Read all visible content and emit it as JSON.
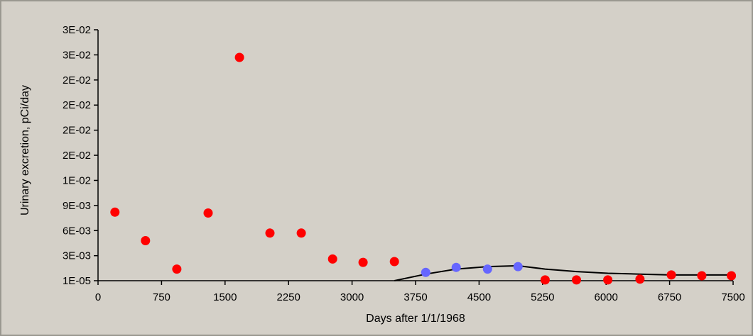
{
  "chart_data": {
    "type": "scatter",
    "xlabel": "Days after 1/1/1968",
    "ylabel": "Urinary excretion, pCi/day",
    "xlim": [
      0,
      7500
    ],
    "ylim": [
      1e-05,
      0.03
    ],
    "x_ticks": [
      0,
      750,
      1500,
      2250,
      3000,
      3750,
      4500,
      5250,
      6000,
      6750,
      7500
    ],
    "y_ticks": [
      1e-05,
      0.003,
      0.006,
      0.009,
      0.012,
      0.015,
      0.018,
      0.021,
      0.024,
      0.027,
      0.03
    ],
    "x_tick_labels": [
      "0",
      "750",
      "1500",
      "2250",
      "3000",
      "3750",
      "4500",
      "5250",
      "6000",
      "6750",
      "7500"
    ],
    "y_tick_labels": [
      "1E-05",
      "3E-03",
      "6E-03",
      "9E-03",
      "1E-02",
      "2E-02",
      "2E-02",
      "2E-02",
      "2E-02",
      "3E-02",
      "3E-02"
    ],
    "grid": false,
    "series": [
      {
        "color": "#ff0000",
        "points": [
          {
            "x": 200,
            "y": 0.0082
          },
          {
            "x": 560,
            "y": 0.0048
          },
          {
            "x": 930,
            "y": 0.0014
          },
          {
            "x": 1300,
            "y": 0.0081
          },
          {
            "x": 1670,
            "y": 0.0267
          },
          {
            "x": 2030,
            "y": 0.0057
          },
          {
            "x": 2400,
            "y": 0.0057
          },
          {
            "x": 2770,
            "y": 0.0026
          },
          {
            "x": 3130,
            "y": 0.0022
          },
          {
            "x": 3500,
            "y": 0.0023
          },
          {
            "x": 5280,
            "y": 0.0001
          },
          {
            "x": 5650,
            "y": 0.0001
          },
          {
            "x": 6020,
            "y": 0.0001
          },
          {
            "x": 6400,
            "y": 0.0002
          },
          {
            "x": 6770,
            "y": 0.0007
          },
          {
            "x": 7130,
            "y": 0.0006
          },
          {
            "x": 7480,
            "y": 0.0006
          }
        ]
      },
      {
        "color": "#6666ff",
        "points": [
          {
            "x": 3870,
            "y": 0.001
          },
          {
            "x": 4230,
            "y": 0.0016
          },
          {
            "x": 4600,
            "y": 0.0014
          },
          {
            "x": 4960,
            "y": 0.0017
          }
        ]
      }
    ],
    "fit_line": {
      "color": "#000000",
      "points": [
        {
          "x": 3500,
          "y": 1e-05
        },
        {
          "x": 3870,
          "y": 0.0008
        },
        {
          "x": 4230,
          "y": 0.0014
        },
        {
          "x": 4600,
          "y": 0.0017
        },
        {
          "x": 4960,
          "y": 0.0018
        },
        {
          "x": 5280,
          "y": 0.0014
        },
        {
          "x": 5650,
          "y": 0.0011
        },
        {
          "x": 6020,
          "y": 0.0009
        },
        {
          "x": 6400,
          "y": 0.0008
        },
        {
          "x": 6770,
          "y": 0.0007
        },
        {
          "x": 7130,
          "y": 0.0007
        },
        {
          "x": 7480,
          "y": 0.0007
        }
      ]
    }
  }
}
